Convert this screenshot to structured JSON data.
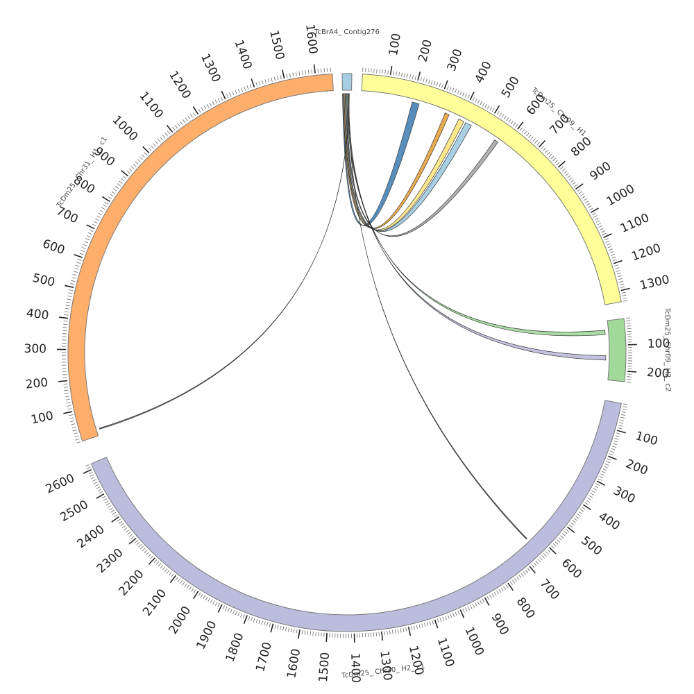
{
  "segments": [
    {
      "name": "TcBrA4_ Contig276",
      "start_deg": -1.0,
      "end_deg": 1.0,
      "size": 10,
      "color": "#a6cee3",
      "ticks": []
    },
    {
      "name": "TcDm25_ Chr09_ H1",
      "start_deg": 3.2,
      "end_deg": 79.5,
      "size": 1340,
      "color": "#ffff99",
      "ticks": [
        100,
        200,
        300,
        400,
        500,
        600,
        700,
        800,
        900,
        1000,
        1100,
        1200,
        1300
      ]
    },
    {
      "name": "TcDm25_ Chr09_ H2_ c2",
      "start_deg": 83.0,
      "end_deg": 96.0,
      "size": 240,
      "color": "#a1d99b",
      "ticks": [
        100,
        200
      ]
    },
    {
      "name": "TcDm25_ Chr30_ H2_ c1",
      "start_deg": 100.5,
      "end_deg": 246.5,
      "size": 2620,
      "color": "#bcbddc",
      "ticks": [
        100,
        200,
        300,
        400,
        500,
        600,
        700,
        800,
        900,
        1000,
        1100,
        1200,
        1300,
        1400,
        1500,
        1600,
        1700,
        1800,
        1900,
        2000,
        2100,
        2200,
        2300,
        2400,
        2500,
        2600
      ]
    },
    {
      "name": "TcDm25_ Chr31_ H1_ c1",
      "start_deg": 251.5,
      "end_deg": 357.0,
      "size": 1655,
      "color": "#fdae6b",
      "ticks": [
        100,
        200,
        300,
        400,
        500,
        600,
        700,
        800,
        900,
        1000,
        1100,
        1200,
        1300,
        1400,
        1500,
        1600
      ]
    }
  ],
  "links": [
    {
      "from": "TcBrA4_ Contig276",
      "from_pos": [
        0,
        1
      ],
      "to": "TcDm25_ Chr09_ H1",
      "to_pos": [
        200,
        228
      ],
      "color": "#4682b4"
    },
    {
      "from": "TcBrA4_ Contig276",
      "from_pos": [
        1,
        2
      ],
      "to": "TcDm25_ Chr09_ H1",
      "to_pos": [
        335,
        352
      ],
      "color": "#e6a23c"
    },
    {
      "from": "TcBrA4_ Contig276",
      "from_pos": [
        2,
        3
      ],
      "to": "TcDm25_ Chr09_ H1",
      "to_pos": [
        393,
        415
      ],
      "color": "#ffe680"
    },
    {
      "from": "TcBrA4_ Contig276",
      "from_pos": [
        3,
        4
      ],
      "to": "TcDm25_ Chr09_ H1",
      "to_pos": [
        423,
        448
      ],
      "color": "#9ecae1"
    },
    {
      "from": "TcBrA4_ Contig276",
      "from_pos": [
        4,
        5
      ],
      "to": "TcDm25_ Chr09_ H1",
      "to_pos": [
        555,
        570
      ],
      "color": "#aaaaaa"
    },
    {
      "from": "TcBrA4_ Contig276",
      "from_pos": [
        5,
        6
      ],
      "to": "TcDm25_ Chr09_ H2_ c2",
      "to_pos": [
        38,
        56
      ],
      "color": "#a1d99b"
    },
    {
      "from": "TcBrA4_ Contig276",
      "from_pos": [
        6,
        7
      ],
      "to": "TcDm25_ Chr09_ H2_ c2",
      "to_pos": [
        142,
        160
      ],
      "color": "#bcbddc"
    },
    {
      "from": "TcBrA4_ Contig276",
      "from_pos": [
        7,
        7.2
      ],
      "to": "TcDm25_ Chr30_ H2_ c1",
      "to_pos": [
        636,
        640
      ],
      "color": "#666666"
    },
    {
      "from": "TcBrA4_ Contig276",
      "from_pos": [
        7.4,
        7.6
      ],
      "to": "TcDm25_ Chr31_ H1_ c1",
      "to_pos": [
        20,
        24
      ],
      "color": "#666666"
    }
  ]
}
